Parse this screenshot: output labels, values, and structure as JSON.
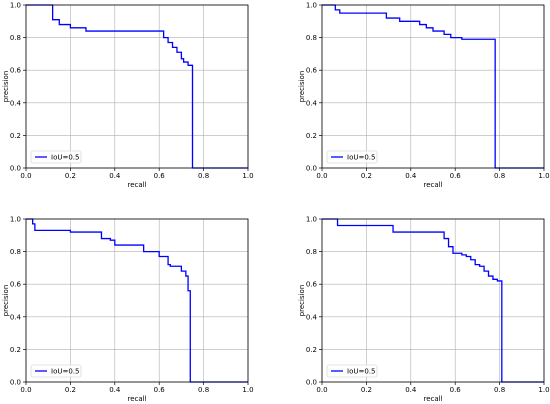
{
  "colors": {
    "series": "#0000ff",
    "grid": "#b0b0b0",
    "axes": "#000000",
    "background": "#ffffff"
  },
  "chart_data": [
    {
      "type": "line",
      "xlabel": "recall",
      "ylabel": "precision",
      "xlim": [
        0,
        1
      ],
      "ylim": [
        0,
        1
      ],
      "xticks": [
        "0.0",
        "0.2",
        "0.4",
        "0.6",
        "0.8",
        "1.0"
      ],
      "yticks": [
        "0.0",
        "0.2",
        "0.4",
        "0.6",
        "0.8",
        "1.0"
      ],
      "grid": true,
      "legend_position": "lower-left",
      "series": [
        {
          "name": "IoU=0.5",
          "x": [
            0,
            0.12,
            0.12,
            0.15,
            0.15,
            0.2,
            0.2,
            0.27,
            0.27,
            0.62,
            0.62,
            0.64,
            0.64,
            0.66,
            0.66,
            0.68,
            0.68,
            0.7,
            0.7,
            0.71,
            0.71,
            0.73,
            0.73,
            0.75,
            0.75,
            1.0
          ],
          "y": [
            1.0,
            1.0,
            0.91,
            0.91,
            0.88,
            0.88,
            0.86,
            0.86,
            0.84,
            0.84,
            0.8,
            0.8,
            0.77,
            0.77,
            0.74,
            0.74,
            0.71,
            0.71,
            0.67,
            0.67,
            0.65,
            0.65,
            0.63,
            0.63,
            0.0,
            0.0
          ]
        }
      ]
    },
    {
      "type": "line",
      "xlabel": "recall",
      "ylabel": "precision",
      "xlim": [
        0,
        1
      ],
      "ylim": [
        0,
        1
      ],
      "xticks": [
        "0.0",
        "0.2",
        "0.4",
        "0.6",
        "0.8",
        "1.0"
      ],
      "yticks": [
        "0.0",
        "0.2",
        "0.4",
        "0.6",
        "0.8",
        "1.0"
      ],
      "grid": true,
      "legend_position": "lower-left",
      "series": [
        {
          "name": "IoU=0.5",
          "x": [
            0,
            0.06,
            0.06,
            0.08,
            0.08,
            0.29,
            0.29,
            0.35,
            0.35,
            0.44,
            0.44,
            0.47,
            0.47,
            0.5,
            0.5,
            0.55,
            0.55,
            0.58,
            0.58,
            0.63,
            0.63,
            0.78,
            0.78,
            1.0
          ],
          "y": [
            1.0,
            1.0,
            0.97,
            0.97,
            0.95,
            0.95,
            0.92,
            0.92,
            0.9,
            0.9,
            0.88,
            0.88,
            0.86,
            0.86,
            0.84,
            0.84,
            0.82,
            0.82,
            0.8,
            0.8,
            0.79,
            0.79,
            0.0,
            0.0
          ]
        }
      ]
    },
    {
      "type": "line",
      "xlabel": "recall",
      "ylabel": "precision",
      "xlim": [
        0,
        1
      ],
      "ylim": [
        0,
        1
      ],
      "xticks": [
        "0.0",
        "0.2",
        "0.4",
        "0.6",
        "0.8",
        "1.0"
      ],
      "yticks": [
        "0.0",
        "0.2",
        "0.4",
        "0.6",
        "0.8",
        "1.0"
      ],
      "grid": true,
      "legend_position": "lower-left",
      "series": [
        {
          "name": "IoU=0.5",
          "x": [
            0,
            0.03,
            0.03,
            0.04,
            0.04,
            0.2,
            0.2,
            0.34,
            0.34,
            0.38,
            0.38,
            0.4,
            0.4,
            0.46,
            0.46,
            0.53,
            0.53,
            0.6,
            0.6,
            0.64,
            0.64,
            0.65,
            0.65,
            0.7,
            0.7,
            0.72,
            0.72,
            0.73,
            0.73,
            0.74,
            0.74,
            0.77,
            0.77,
            1.0
          ],
          "y": [
            1.0,
            1.0,
            0.97,
            0.97,
            0.93,
            0.93,
            0.92,
            0.92,
            0.88,
            0.88,
            0.87,
            0.87,
            0.84,
            0.84,
            0.84,
            0.84,
            0.8,
            0.8,
            0.77,
            0.77,
            0.72,
            0.72,
            0.71,
            0.71,
            0.68,
            0.68,
            0.65,
            0.65,
            0.56,
            0.56,
            0.0,
            0.0,
            0.0,
            0.0
          ]
        }
      ]
    },
    {
      "type": "line",
      "xlabel": "recall",
      "ylabel": "precision",
      "xlim": [
        0,
        1
      ],
      "ylim": [
        0,
        1
      ],
      "xticks": [
        "0.0",
        "0.2",
        "0.4",
        "0.6",
        "0.8",
        "1.0"
      ],
      "yticks": [
        "0.0",
        "0.2",
        "0.4",
        "0.6",
        "0.8",
        "1.0"
      ],
      "grid": true,
      "legend_position": "lower-left",
      "series": [
        {
          "name": "IoU=0.5",
          "x": [
            0,
            0.07,
            0.07,
            0.32,
            0.32,
            0.55,
            0.55,
            0.57,
            0.57,
            0.59,
            0.59,
            0.63,
            0.63,
            0.65,
            0.65,
            0.67,
            0.67,
            0.69,
            0.69,
            0.71,
            0.71,
            0.73,
            0.73,
            0.75,
            0.75,
            0.77,
            0.77,
            0.79,
            0.79,
            0.81,
            0.81,
            1.0
          ],
          "y": [
            1.0,
            1.0,
            0.96,
            0.96,
            0.92,
            0.92,
            0.88,
            0.88,
            0.83,
            0.83,
            0.79,
            0.79,
            0.78,
            0.78,
            0.77,
            0.77,
            0.75,
            0.75,
            0.72,
            0.72,
            0.71,
            0.71,
            0.68,
            0.68,
            0.65,
            0.65,
            0.63,
            0.63,
            0.62,
            0.62,
            0.0,
            0.0
          ]
        }
      ]
    }
  ]
}
